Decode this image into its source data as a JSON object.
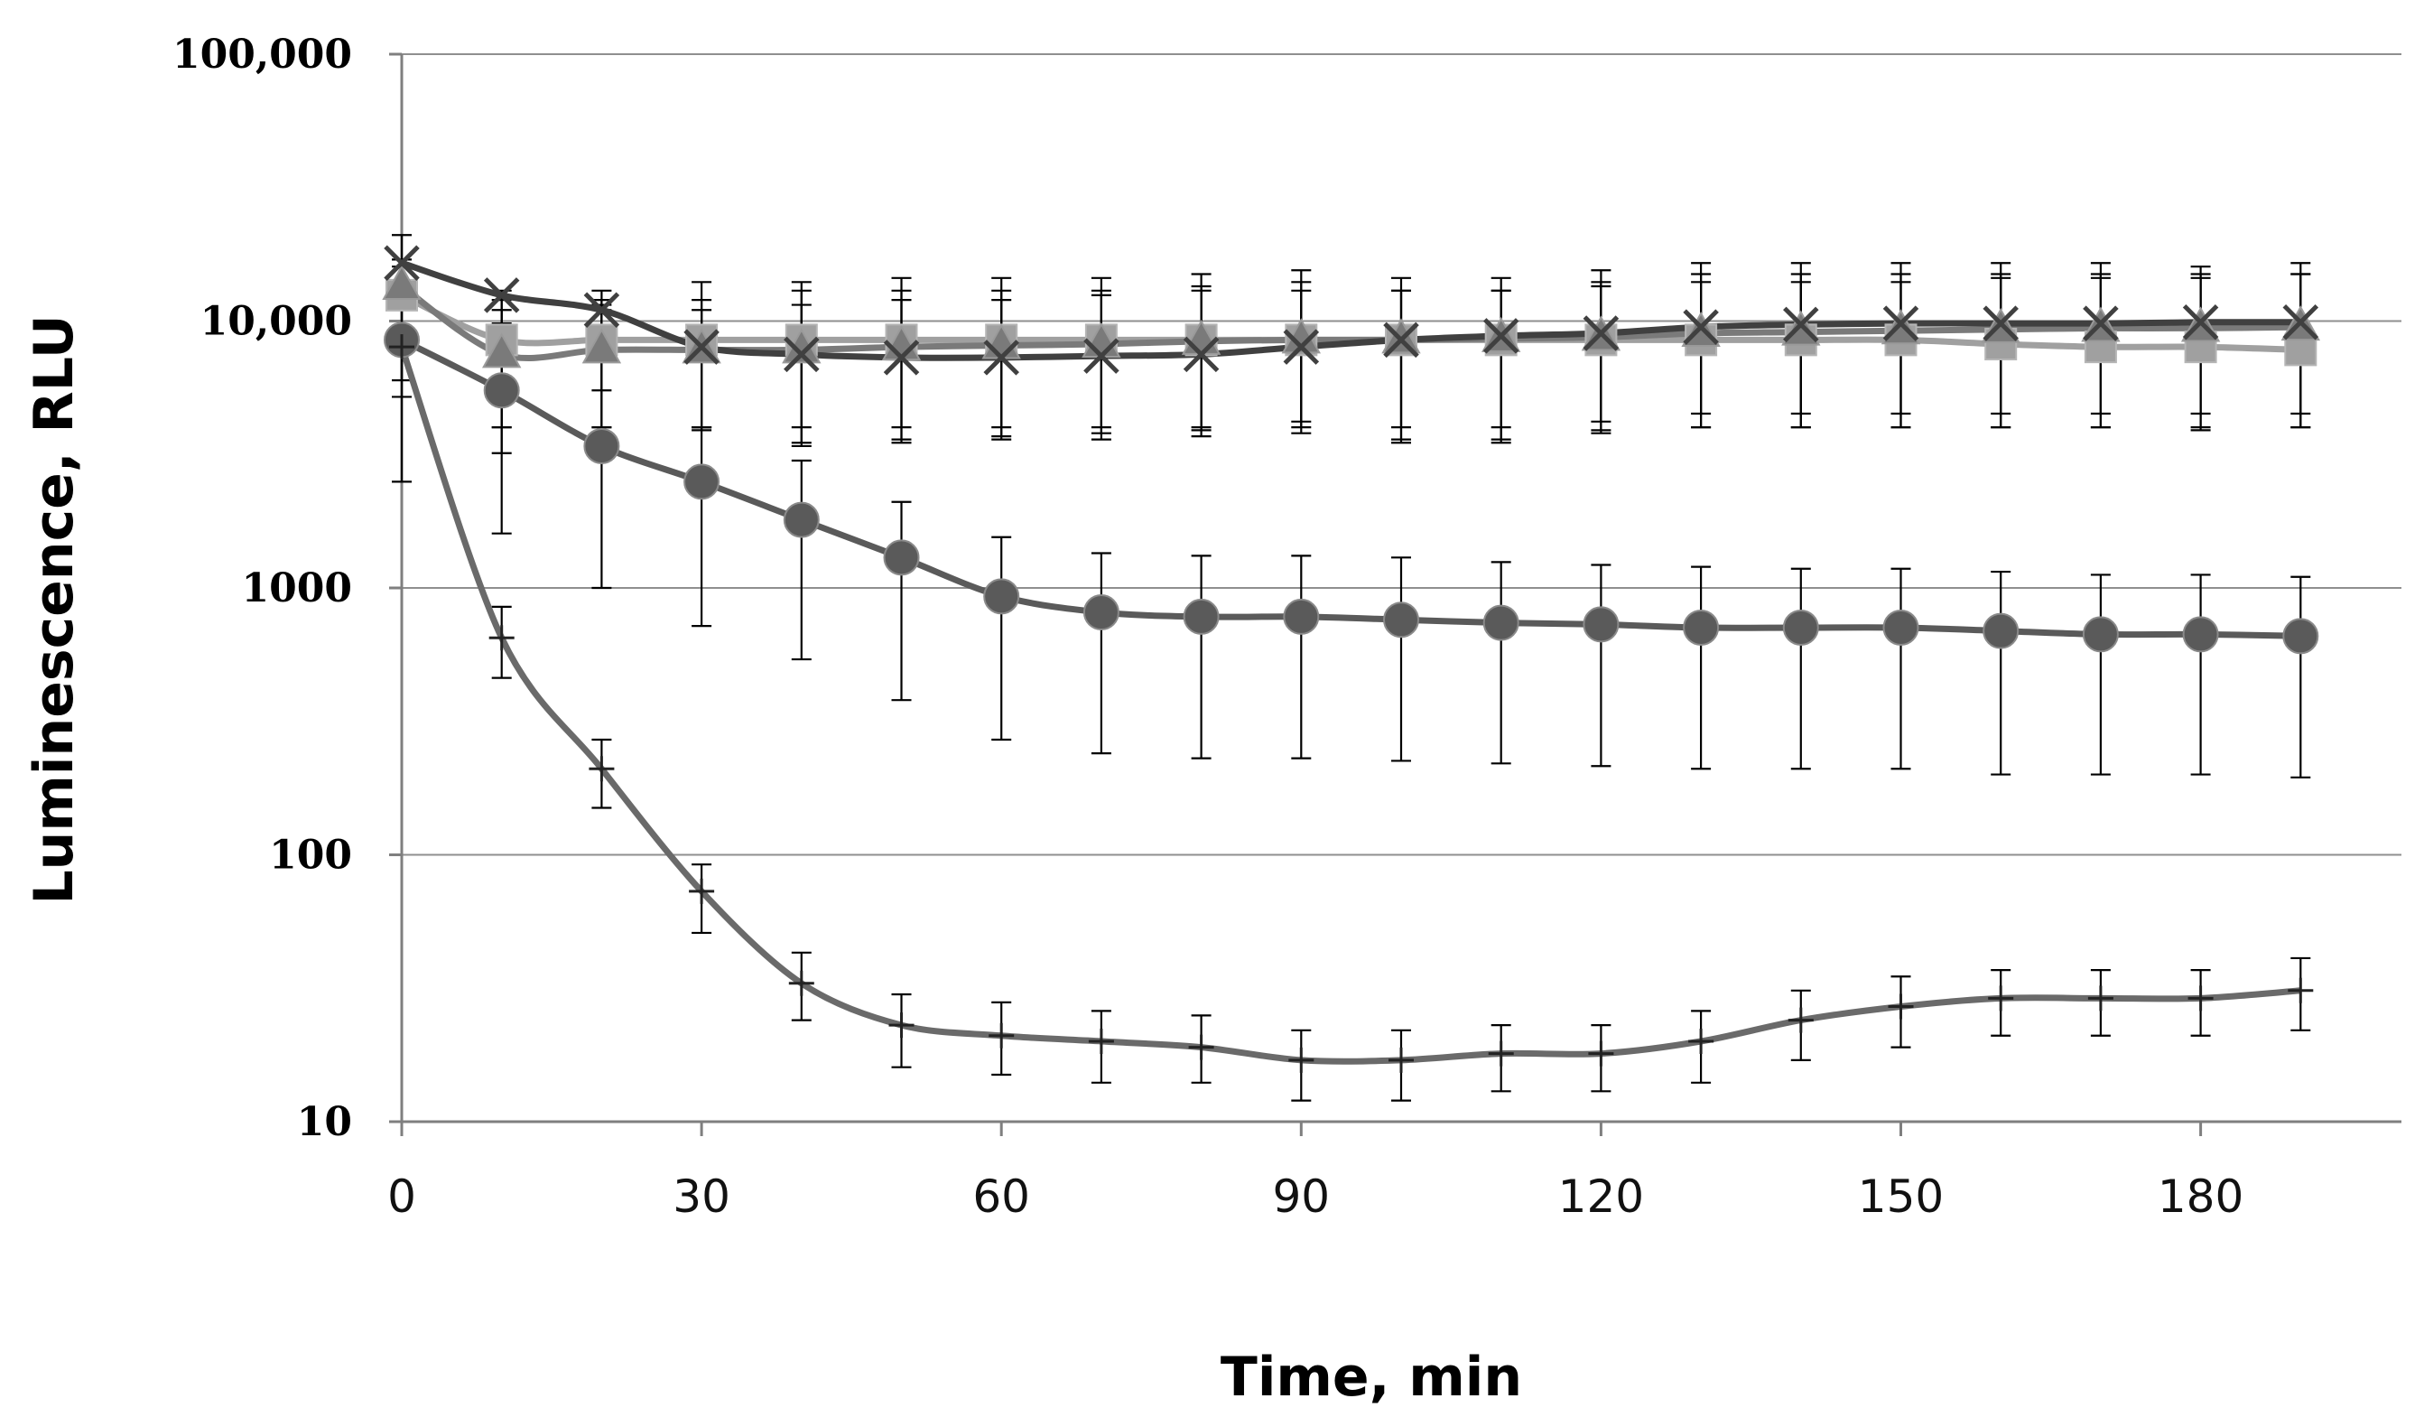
{
  "chart_data": {
    "type": "line",
    "title": "",
    "xlabel": "Time, min",
    "ylabel": "Luminescence, RLU",
    "yscale": "log",
    "ylim": [
      10,
      100000
    ],
    "xlim": [
      0,
      200
    ],
    "grid": true,
    "x_ticks": [
      "0",
      "30",
      "60",
      "90",
      "120",
      "150",
      "180"
    ],
    "x_tick_values": [
      0,
      30,
      60,
      90,
      120,
      150,
      180
    ],
    "y_ticks": [
      "10",
      "100",
      "1000",
      "10,000",
      "100,000"
    ],
    "y_tick_values": [
      10,
      100,
      1000,
      10000,
      100000
    ],
    "x": [
      0,
      10,
      20,
      30,
      40,
      50,
      60,
      70,
      80,
      90,
      100,
      110,
      120,
      130,
      140,
      150,
      160,
      170,
      180,
      190
    ],
    "series": [
      {
        "name": "series-squares",
        "marker": "square",
        "color": "#a0a0a0",
        "values": [
          12500,
          8500,
          8500,
          8500,
          8500,
          8500,
          8500,
          8500,
          8500,
          8500,
          8500,
          8500,
          8500,
          8500,
          8500,
          8500,
          8200,
          8000,
          8000,
          7800
        ],
        "err_hi": [
          16000,
          12000,
          12000,
          12000,
          13000,
          13000,
          13000,
          13000,
          13500,
          14000,
          13000,
          13000,
          14000,
          15000,
          15000,
          15000,
          15000,
          15000,
          15000,
          15000
        ],
        "err_lo": [
          6000,
          4000,
          4000,
          4000,
          3500,
          3600,
          3700,
          3800,
          3900,
          4000,
          3600,
          3600,
          3900,
          4000,
          4000,
          4000,
          4000,
          4000,
          4000,
          4000
        ]
      },
      {
        "name": "series-triangles",
        "marker": "triangle",
        "color": "#7a7a7a",
        "values": [
          13500,
          7500,
          7800,
          7800,
          7800,
          8000,
          8100,
          8200,
          8400,
          8500,
          8500,
          8600,
          8700,
          9000,
          9100,
          9200,
          9300,
          9400,
          9400,
          9500
        ],
        "err_hi": [
          17000,
          11000,
          11000,
          11000,
          11500,
          12000,
          12000,
          12500,
          13000,
          13000,
          13000,
          13000,
          13500,
          14000,
          14000,
          14000,
          14500,
          14500,
          14500,
          15000
        ],
        "err_lo": [
          8000,
          4000,
          4000,
          4000,
          4000,
          4000,
          4000,
          4000,
          4000,
          4200,
          4000,
          4000,
          4200,
          4500,
          4500,
          4500,
          4500,
          4500,
          4500,
          4500
        ]
      },
      {
        "name": "series-x-markers",
        "marker": "x",
        "color": "#404040",
        "values": [
          16500,
          12500,
          11000,
          8000,
          7500,
          7300,
          7300,
          7400,
          7500,
          8000,
          8500,
          8800,
          9000,
          9500,
          9700,
          9800,
          9800,
          9800,
          9900,
          9900
        ],
        "err_hi": [
          21000,
          13000,
          13000,
          14000,
          14000,
          14500,
          14500,
          14500,
          15000,
          15500,
          14500,
          14500,
          15500,
          16500,
          16500,
          16500,
          16500,
          16500,
          16000,
          16500
        ],
        "err_lo": [
          5200,
          3200,
          5500,
          3900,
          3400,
          3500,
          3600,
          3600,
          3700,
          3800,
          3500,
          3500,
          3800,
          4000,
          4000,
          4000,
          4000,
          4000,
          3900,
          4000
        ]
      },
      {
        "name": "series-circles",
        "marker": "circle",
        "color": "#5a5a5a",
        "values": [
          8500,
          5500,
          3400,
          2500,
          1800,
          1300,
          930,
          810,
          780,
          780,
          760,
          740,
          730,
          710,
          710,
          710,
          690,
          670,
          670,
          660
        ],
        "err_hi": [
          9000,
          9800,
          11500,
          4000,
          3000,
          2100,
          1550,
          1350,
          1320,
          1320,
          1300,
          1250,
          1220,
          1200,
          1180,
          1180,
          1150,
          1120,
          1120,
          1100
        ],
        "err_lo": [
          2500,
          1600,
          1000,
          720,
          540,
          380,
          270,
          240,
          230,
          230,
          225,
          220,
          215,
          210,
          210,
          210,
          200,
          200,
          200,
          195
        ]
      },
      {
        "name": "series-plus",
        "marker": "plus",
        "color": "#6a6a6a",
        "values": [
          8000,
          650,
          210,
          73,
          33,
          23,
          21,
          20,
          19,
          17,
          17,
          18,
          18,
          20,
          24,
          27,
          29,
          29,
          29,
          31
        ],
        "err_hi": [
          9500,
          850,
          270,
          92,
          43,
          30,
          28,
          26,
          25,
          22,
          22,
          23,
          23,
          26,
          31,
          35,
          37,
          37,
          37,
          41
        ],
        "err_lo": [
          6000,
          460,
          150,
          51,
          24,
          16,
          15,
          14,
          14,
          12,
          12,
          13,
          13,
          14,
          17,
          19,
          21,
          21,
          21,
          22
        ]
      }
    ]
  }
}
